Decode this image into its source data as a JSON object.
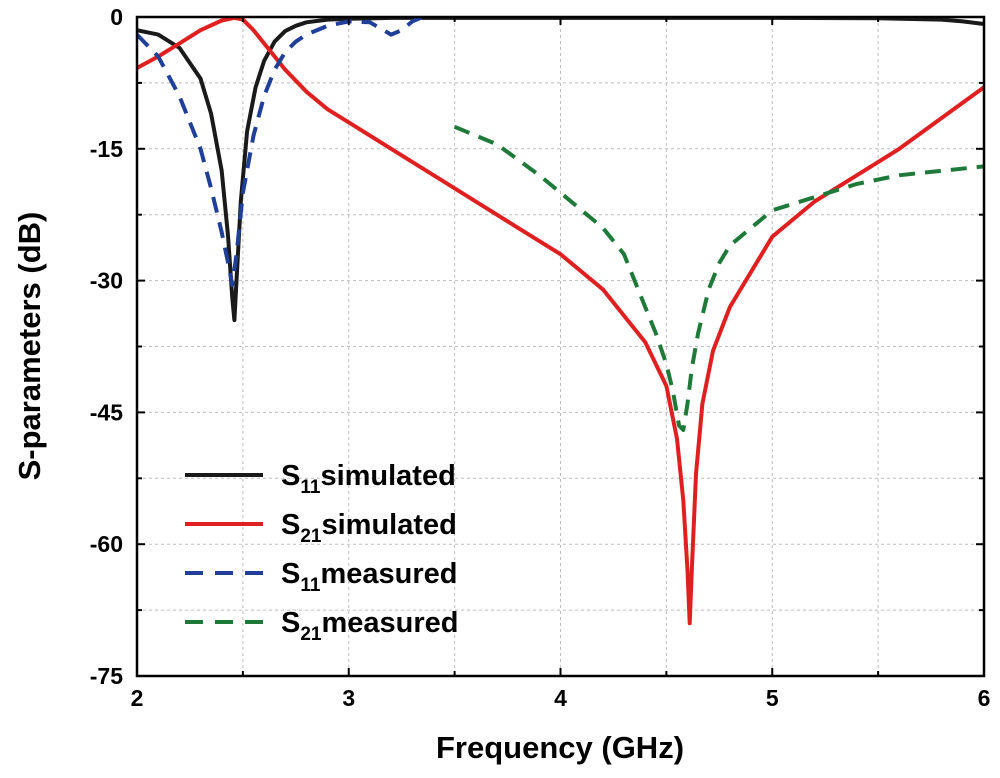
{
  "chart_data": {
    "type": "line",
    "xlabel": "Frequency (GHz)",
    "ylabel": "S-parameters (dB)",
    "xlim": [
      2,
      6
    ],
    "ylim": [
      -75,
      0
    ],
    "xticks": [
      2,
      3,
      4,
      5,
      6
    ],
    "yticks": [
      0,
      -15,
      -30,
      -45,
      -60,
      -75
    ],
    "grid": true,
    "legend": {
      "placement": "bottom-left",
      "entries": [
        {
          "main": "S",
          "sub": "11",
          "text": "simulated"
        },
        {
          "main": "S",
          "sub": "21",
          "text": "simulated"
        },
        {
          "main": "S",
          "sub": "11",
          "text": "measured"
        },
        {
          "main": "S",
          "sub": "21",
          "text": "measured"
        }
      ]
    },
    "series": [
      {
        "name": "S11simulated",
        "color": "#1a1a1a",
        "dash": "solid",
        "x": [
          2.0,
          2.1,
          2.2,
          2.3,
          2.35,
          2.4,
          2.43,
          2.45,
          2.46,
          2.47,
          2.49,
          2.52,
          2.56,
          2.6,
          2.65,
          2.7,
          2.75,
          2.8,
          2.9,
          3.0,
          3.2,
          3.5,
          4.0,
          4.5,
          5.0,
          5.5,
          5.8,
          5.9,
          6.0
        ],
        "y": [
          -1.5,
          -2.0,
          -3.5,
          -7.0,
          -11.0,
          -17.5,
          -25.0,
          -32.0,
          -34.5,
          -30.0,
          -21.0,
          -13.0,
          -8.0,
          -5.0,
          -2.8,
          -1.6,
          -1.0,
          -0.6,
          -0.3,
          -0.2,
          -0.1,
          -0.1,
          -0.1,
          -0.1,
          -0.1,
          -0.15,
          -0.3,
          -0.5,
          -0.8
        ]
      },
      {
        "name": "S21simulated",
        "color": "#e02020",
        "dash": "solid",
        "x": [
          2.0,
          2.1,
          2.2,
          2.3,
          2.4,
          2.46,
          2.5,
          2.55,
          2.6,
          2.7,
          2.8,
          2.9,
          3.0,
          3.2,
          3.5,
          3.8,
          4.0,
          4.2,
          4.4,
          4.5,
          4.55,
          4.58,
          4.6,
          4.61,
          4.62,
          4.64,
          4.67,
          4.72,
          4.8,
          4.9,
          5.0,
          5.2,
          5.4,
          5.6,
          5.8,
          6.0
        ],
        "y": [
          -5.8,
          -4.5,
          -3.0,
          -1.5,
          -0.4,
          -0.1,
          -0.3,
          -1.5,
          -3.0,
          -6.0,
          -8.5,
          -10.5,
          -12.0,
          -15.0,
          -19.5,
          -24.0,
          -27.0,
          -31.0,
          -37.0,
          -42.0,
          -48.0,
          -55.0,
          -63.0,
          -69.0,
          -63.0,
          -52.0,
          -44.0,
          -38.0,
          -33.0,
          -29.0,
          -25.0,
          -21.0,
          -18.0,
          -15.0,
          -11.5,
          -8.0
        ]
      },
      {
        "name": "S11measured",
        "color": "#1f3f99",
        "dash": "dashed",
        "x": [
          2.0,
          2.1,
          2.2,
          2.3,
          2.35,
          2.4,
          2.43,
          2.45,
          2.47,
          2.5,
          2.55,
          2.6,
          2.65,
          2.7,
          2.75,
          2.8,
          2.9,
          3.0,
          3.1,
          3.2,
          3.25,
          3.3,
          3.35
        ],
        "y": [
          -2.0,
          -4.5,
          -9.0,
          -15.0,
          -19.5,
          -24.5,
          -28.0,
          -30.5,
          -27.0,
          -20.0,
          -13.5,
          -9.0,
          -6.0,
          -4.0,
          -2.8,
          -2.0,
          -1.0,
          -0.5,
          -0.6,
          -2.0,
          -1.5,
          -0.5,
          0.0
        ]
      },
      {
        "name": "S21measured",
        "color": "#1f7a3a",
        "dash": "dashed",
        "x": [
          3.5,
          3.7,
          3.9,
          4.0,
          4.1,
          4.2,
          4.3,
          4.4,
          4.45,
          4.5,
          4.53,
          4.56,
          4.58,
          4.6,
          4.62,
          4.65,
          4.7,
          4.75,
          4.8,
          4.9,
          5.0,
          5.2,
          5.4,
          5.6,
          5.8,
          6.0
        ],
        "y": [
          -12.5,
          -14.5,
          -18.0,
          -20.0,
          -22.0,
          -24.0,
          -27.0,
          -33.0,
          -36.0,
          -39.5,
          -42.5,
          -46.5,
          -47.0,
          -44.0,
          -40.0,
          -36.0,
          -31.0,
          -28.0,
          -26.0,
          -24.0,
          -22.0,
          -20.5,
          -19.0,
          -18.0,
          -17.5,
          -17.0
        ]
      }
    ]
  }
}
